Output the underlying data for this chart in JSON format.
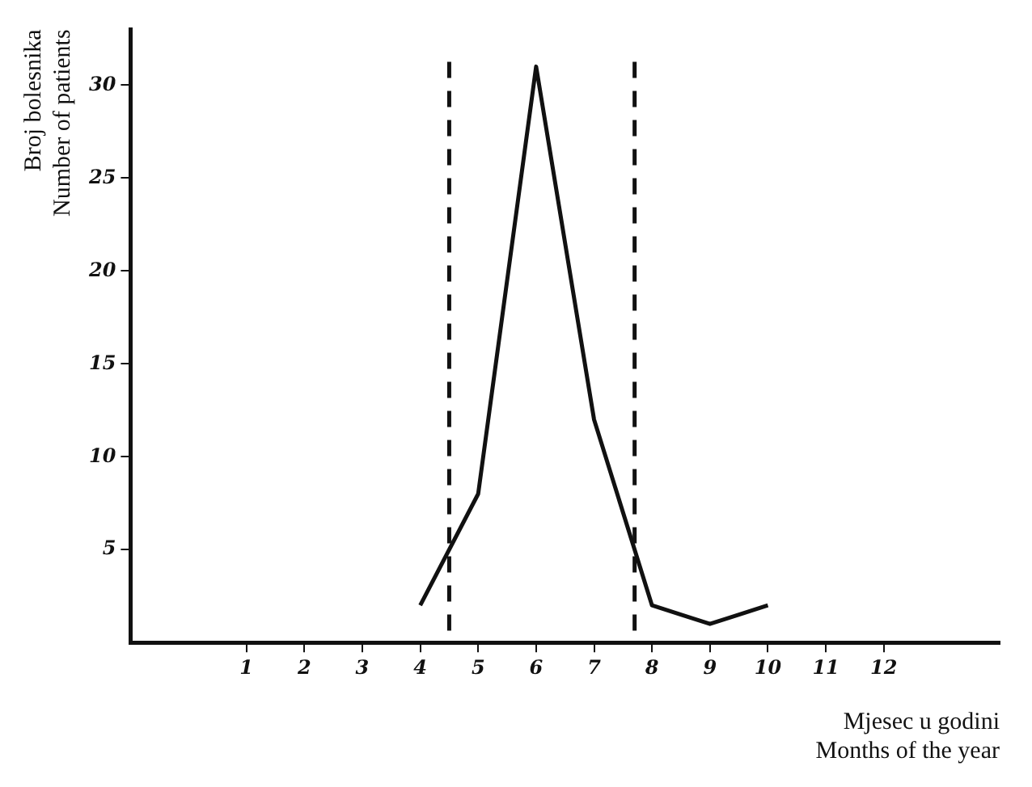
{
  "chart_data": {
    "type": "line",
    "xlabel": "Mjesec u godini\nMonths of the year",
    "ylabel": "Broj bolesnika\nNumber of patients",
    "x": [
      4,
      5,
      6,
      7,
      8,
      9,
      10
    ],
    "series": [
      {
        "color": "#111111",
        "values": [
          2,
          8,
          31,
          12,
          2,
          1,
          2
        ]
      }
    ],
    "xlim": [
      -1,
      14
    ],
    "xticks": [
      1,
      2,
      3,
      4,
      5,
      6,
      7,
      8,
      9,
      10,
      11,
      12
    ],
    "ylim": [
      0,
      33
    ],
    "yticks": [
      5,
      10,
      15,
      20,
      25,
      30
    ],
    "ref_lines": [
      {
        "axis": "x",
        "value": 4.5,
        "color": "#111111",
        "line_style": "dashed"
      },
      {
        "axis": "x",
        "value": 7.7,
        "color": "#111111",
        "line_style": "dashed"
      }
    ],
    "grid": false,
    "legend": false,
    "marker": "none",
    "line_style": "solid"
  }
}
